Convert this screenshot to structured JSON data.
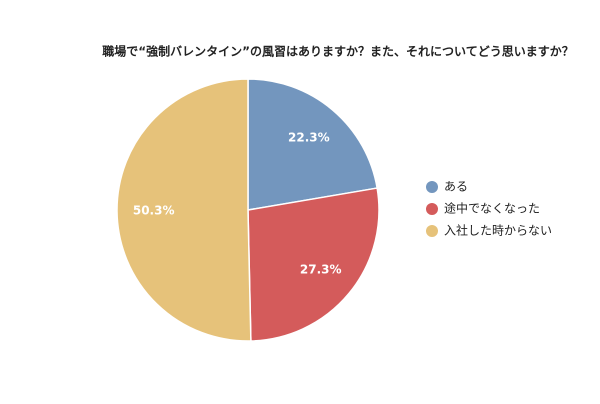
{
  "chart_data": {
    "type": "pie",
    "title": "職場で“強制バレンタイン”の風習はありますか？また、それについてどう思いますか？",
    "categories": [
      "ある",
      "途中でなくなった",
      "入社した時からない"
    ],
    "values": [
      22.3,
      27.3,
      50.3
    ],
    "value_labels": [
      "22.3%",
      "27.3%",
      "50.3%"
    ],
    "colors": [
      "#7396be",
      "#d45b5b",
      "#e6c27a"
    ],
    "legend": "right"
  }
}
